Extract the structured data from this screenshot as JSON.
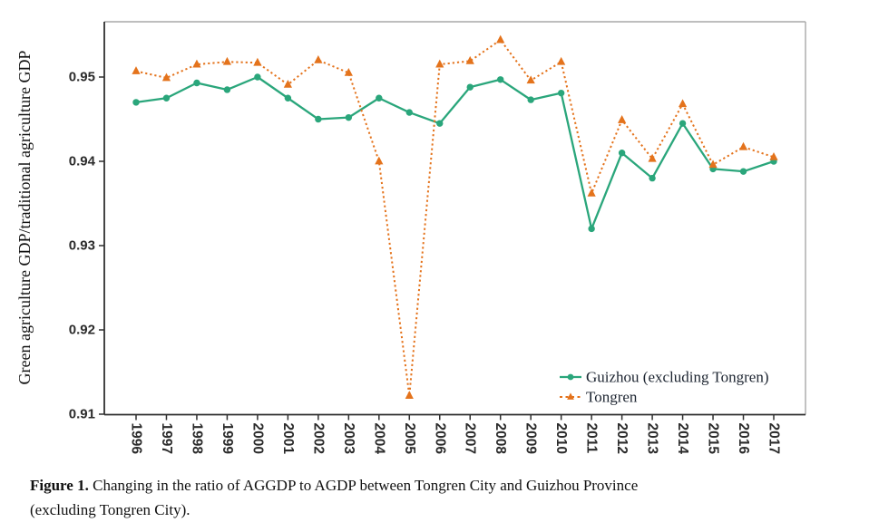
{
  "figure": {
    "caption_label": "Figure 1.",
    "caption_line1": "Changing in the ratio of AGGDP to AGDP between Tongren City and Guizhou Province",
    "caption_line2": "(excluding Tongren City)."
  },
  "chart_data": {
    "type": "line",
    "title": "",
    "xlabel": "",
    "ylabel": "Green agriculture GDP/traditional agriculture GDP",
    "x": [
      1996,
      1997,
      1998,
      1999,
      2000,
      2001,
      2002,
      2003,
      2004,
      2005,
      2006,
      2007,
      2008,
      2009,
      2010,
      2011,
      2012,
      2013,
      2014,
      2015,
      2016,
      2017
    ],
    "series": [
      {
        "name": "Guizhou (excluding Tongren)",
        "color": "#2aa67b",
        "marker": "circle",
        "line_style": "solid",
        "values": [
          0.947,
          0.9475,
          0.9493,
          0.9485,
          0.95,
          0.9475,
          0.945,
          0.9452,
          0.9475,
          0.9458,
          0.9445,
          0.9488,
          0.9497,
          0.9473,
          0.9481,
          0.932,
          0.941,
          0.938,
          0.9445,
          0.9391,
          0.9388,
          0.94
        ]
      },
      {
        "name": "Tongren",
        "color": "#e4731c",
        "marker": "triangle",
        "line_style": "dotted",
        "values": [
          0.9507,
          0.9499,
          0.9515,
          0.9518,
          0.9517,
          0.9491,
          0.952,
          0.9505,
          0.94,
          0.9122,
          0.9515,
          0.9519,
          0.9544,
          0.9496,
          0.9518,
          0.9362,
          0.9449,
          0.9403,
          0.9468,
          0.9396,
          0.9417,
          0.9405
        ]
      }
    ],
    "ylim": [
      0.9098,
      0.9567
    ],
    "yticks": [
      0.91,
      0.92,
      0.93,
      0.94,
      0.95
    ],
    "grid": false,
    "legend_position": "lower right",
    "axis_color": "#2f2f2f",
    "frame_color": "#a9a9a9",
    "tick_label_color": "#2b2b2b"
  }
}
